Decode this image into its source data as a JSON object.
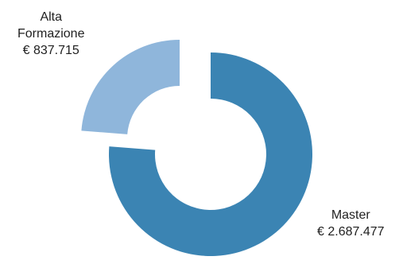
{
  "chart_data": {
    "type": "pie",
    "variant": "donut-exploded",
    "title": "",
    "currency": "€",
    "slices": [
      {
        "name": "Master",
        "label_lines": [
          "Master",
          "€ 2.687.477"
        ],
        "value": 2687477,
        "value_label": "€ 2.687.477",
        "color": "#3b84b3"
      },
      {
        "name": "Alta Formazione",
        "label_lines": [
          "Alta",
          "Formazione",
          "€ 837.715"
        ],
        "value": 837715,
        "value_label": "€ 837.715",
        "color": "#8fb6db"
      }
    ],
    "legend": "none",
    "start_angle": "12 o'clock, clockwise"
  }
}
